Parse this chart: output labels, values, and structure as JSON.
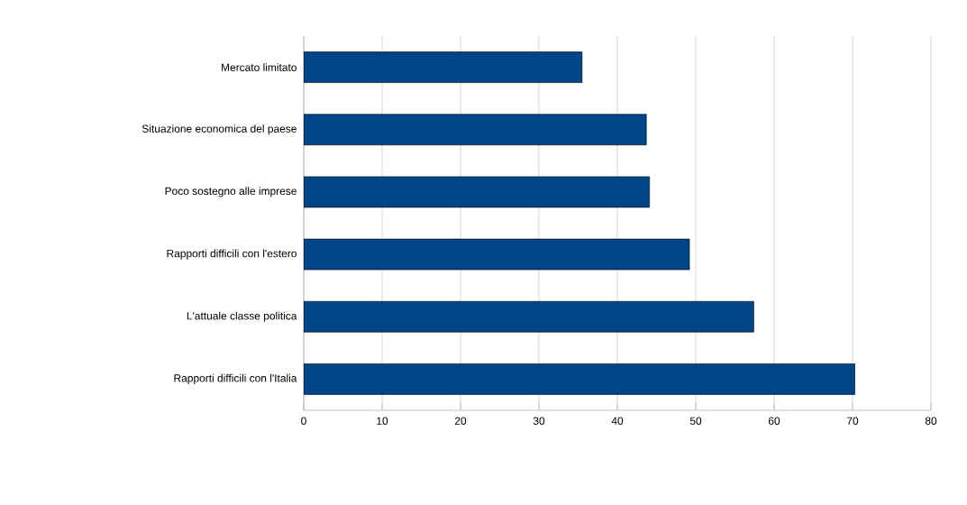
{
  "chart_data": {
    "type": "bar",
    "orientation": "horizontal",
    "categories": [
      "Mercato limitato",
      "Situazione economica del paese",
      "Poco sostegno alle imprese",
      "Rapporti difficili con l'estero",
      "L'attuale classe politica",
      "Rapporti difficili con l'Italia"
    ],
    "values": [
      35.5,
      43.7,
      44.1,
      49.2,
      57.4,
      70.3
    ],
    "color": "#004586",
    "xlim": [
      0,
      80
    ],
    "xticks": [
      0,
      10,
      20,
      30,
      40,
      50,
      60,
      70,
      80
    ],
    "grid": "x"
  }
}
